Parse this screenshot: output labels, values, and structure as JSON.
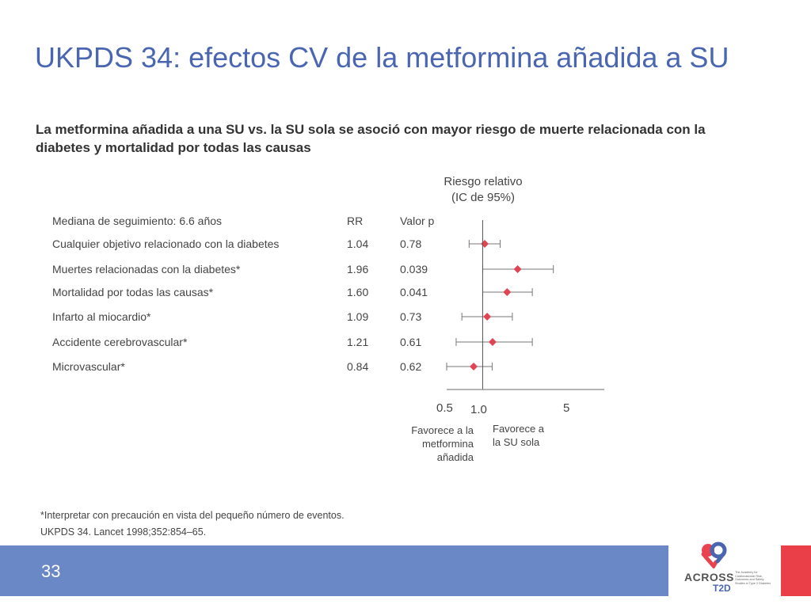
{
  "slide": {
    "title": "UKPDS 34: efectos CV de la metformina añadida a SU",
    "subtitle": "La metformina añadida a una SU vs. la SU sola se asoció con mayor riesgo de muerte relacionada con la diabetes y mortalidad por todas las causas",
    "footnote": "*Interpretar con precaución en vista del pequeño número de eventos.",
    "reference": "UKPDS 34. Lancet 1998;352:854–65.",
    "slide_number": "33",
    "logo": {
      "name_line1": "ACROSS",
      "name_line2": "T2D",
      "tagline": "The Academy for Cardiovascular Risk, Outcomes and Safety Studies in Type 2 Diabetes"
    },
    "colors": {
      "title": "#4a66b0",
      "footer": "#6a87c6",
      "marker": "#e04555",
      "accent_red": "#ea3e48"
    }
  },
  "chart_data": {
    "type": "forest",
    "title_line1": "Riesgo relativo",
    "title_line2": "(IC de 95%)",
    "header_row": {
      "label": "Mediana de seguimiento: 6.6 años",
      "rr": "RR",
      "p": "Valor p"
    },
    "rows": [
      {
        "label": "Cualquier objetivo relacionado con la diabetes",
        "rr": "1.04",
        "p": "0.78",
        "value": 1.04,
        "ci_low": 0.77,
        "ci_high": 1.4
      },
      {
        "label": "Muertes relacionadas con la diabetes*",
        "rr": "1.96",
        "p": "0.039",
        "value": 1.96,
        "ci_low": 1.0,
        "ci_high": 3.9
      },
      {
        "label": "Mortalidad por todas las causas*",
        "rr": "1.60",
        "p": "0.041",
        "value": 1.6,
        "ci_low": 1.0,
        "ci_high": 2.6
      },
      {
        "label": "Infarto al miocardio*",
        "rr": "1.09",
        "p": "0.73",
        "value": 1.09,
        "ci_low": 0.67,
        "ci_high": 1.77
      },
      {
        "label": "Accidente cerebrovascular*",
        "rr": "1.21",
        "p": "0.61",
        "value": 1.21,
        "ci_low": 0.6,
        "ci_high": 2.6
      },
      {
        "label": "Microvascular*",
        "rr": "0.84",
        "p": "0.62",
        "value": 0.84,
        "ci_low": 0.5,
        "ci_high": 1.2
      }
    ],
    "x_ticks": [
      "0.5",
      "1.0",
      "5"
    ],
    "x_tick_values": [
      0.5,
      1.0,
      5
    ],
    "x_scale": "log",
    "xlim": [
      0.5,
      8
    ],
    "reference_line": 1.0,
    "favors_left": [
      "Favorece a la",
      "metformina",
      "añadida"
    ],
    "favors_right": [
      "Favorece a",
      "la SU sola"
    ]
  }
}
